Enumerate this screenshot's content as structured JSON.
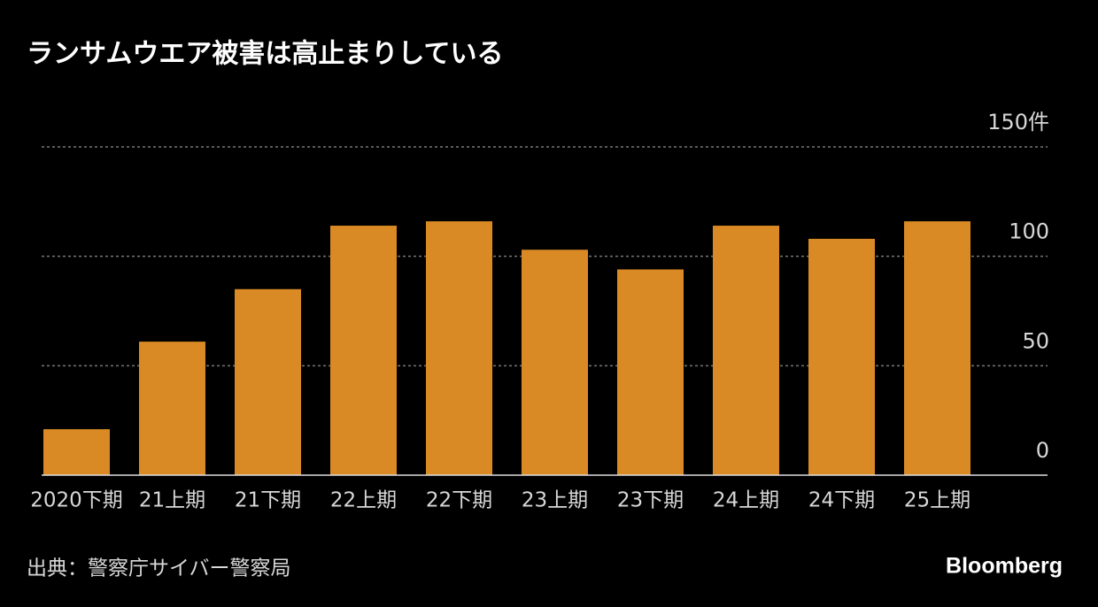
{
  "chart_data": {
    "type": "bar",
    "title": "ランサムウエア被害は高止まりしている",
    "source": "出典：警察庁サイバー警察局",
    "brand": "Bloomberg",
    "categories": [
      "2020下期",
      "21上期",
      "21下期",
      "22上期",
      "22下期",
      "23上期",
      "23下期",
      "24上期",
      "24下期",
      "25上期"
    ],
    "values": [
      21,
      61,
      85,
      114,
      116,
      103,
      94,
      114,
      108,
      116
    ],
    "color": "#d98a24",
    "ylim": [
      0,
      150
    ],
    "yticks": [
      0,
      50,
      100,
      {
        "value": 150,
        "label": "150件"
      }
    ],
    "grid": true
  }
}
